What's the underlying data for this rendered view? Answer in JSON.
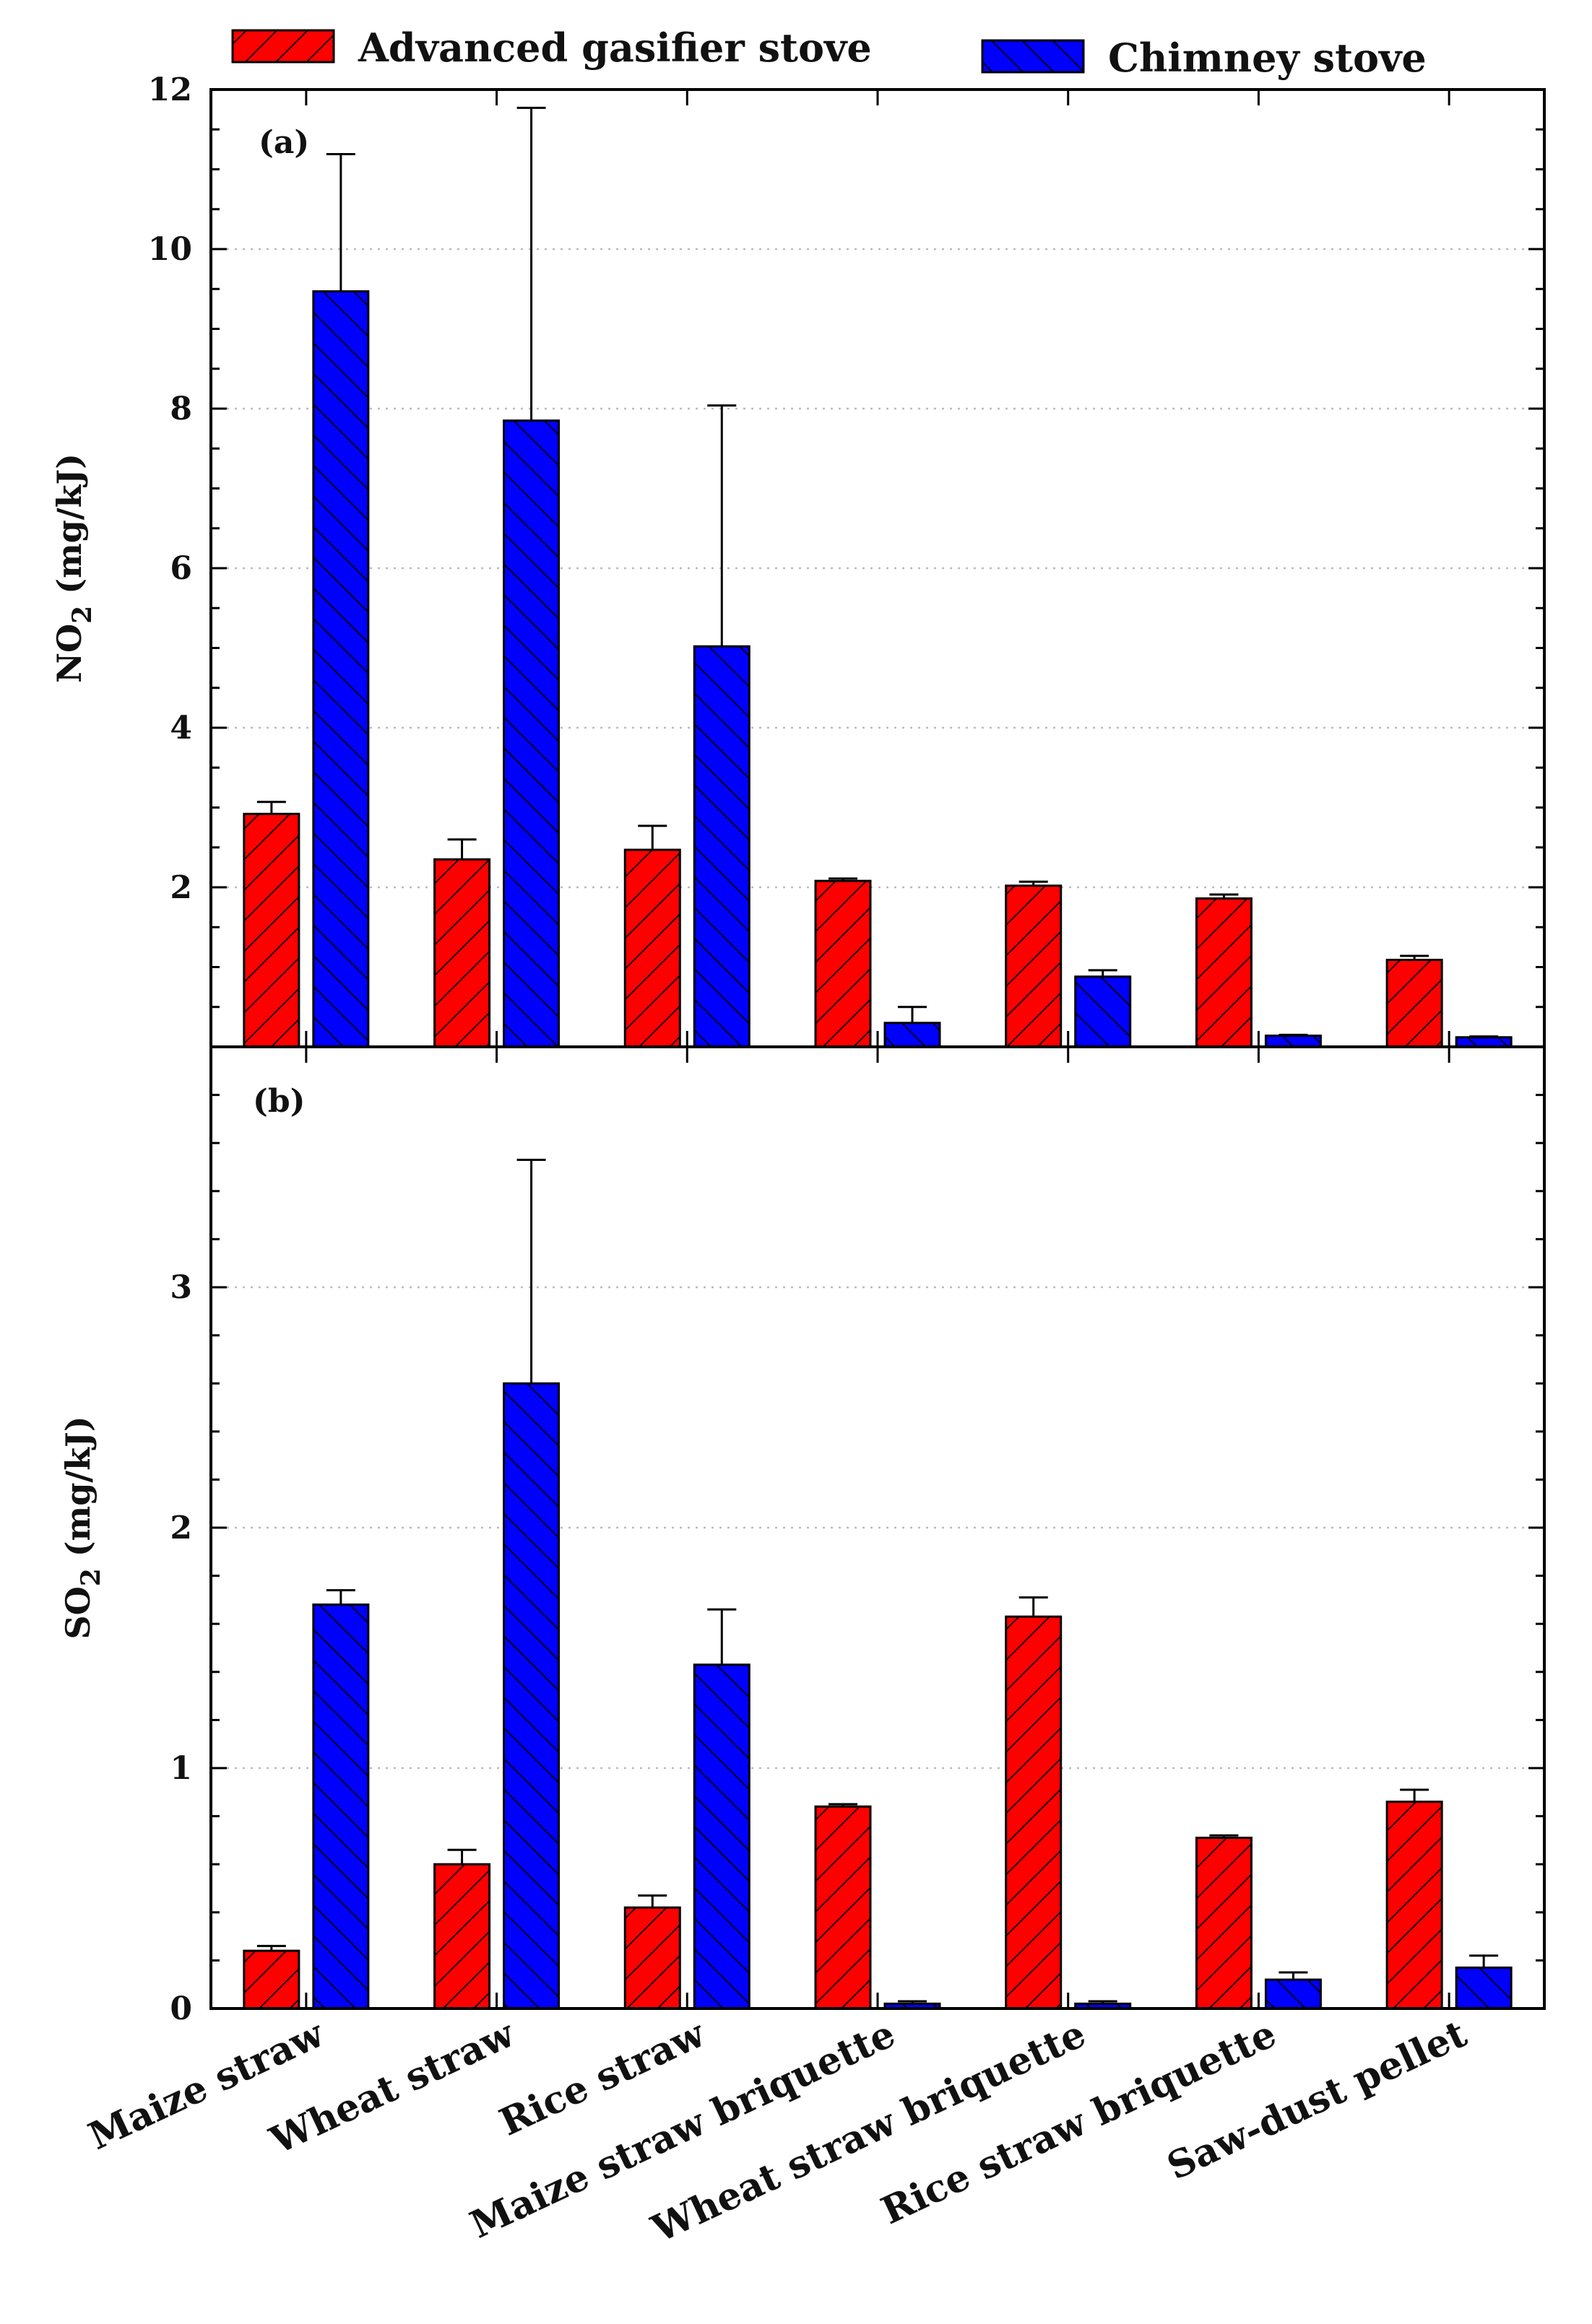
{
  "chart_data": [
    {
      "panel": "(a)",
      "type": "bar",
      "ylabel": "NO",
      "ylabel_sub": "2",
      "ylabel_unit": " (mg/kJ)",
      "ylim": [
        0,
        12
      ],
      "yticks": [
        2,
        4,
        6,
        8,
        10,
        12
      ],
      "grid": true,
      "categories": [
        "Maize straw",
        "Wheat straw",
        "Rice straw",
        "Maize straw briquette",
        "Wheat straw briquette",
        "Rice straw briquette",
        "Saw-dust pellet"
      ],
      "series": [
        {
          "name": "Advanced gasifier stove",
          "color": "#ff0000",
          "values": [
            2.92,
            2.35,
            2.47,
            2.08,
            2.02,
            1.86,
            1.09
          ],
          "errors": [
            0.15,
            0.25,
            0.3,
            0.03,
            0.05,
            0.05,
            0.05
          ]
        },
        {
          "name": "Chimney stove",
          "color": "#0000ff",
          "values": [
            9.47,
            7.85,
            5.02,
            0.3,
            0.88,
            0.14,
            0.12
          ],
          "errors": [
            1.72,
            3.92,
            3.02,
            0.2,
            0.08,
            0.01,
            0.01
          ]
        }
      ]
    },
    {
      "panel": "(b)",
      "type": "bar",
      "ylabel": "SO",
      "ylabel_sub": "2",
      "ylabel_unit": " (mg/kJ)",
      "ylim": [
        0,
        4
      ],
      "yticks": [
        0,
        1,
        2,
        3
      ],
      "grid": true,
      "categories": [
        "Maize straw",
        "Wheat straw",
        "Rice straw",
        "Maize straw briquette",
        "Wheat straw briquette",
        "Rice straw briquette",
        "Saw-dust pellet"
      ],
      "series": [
        {
          "name": "Advanced gasifier stove",
          "color": "#ff0000",
          "values": [
            0.24,
            0.6,
            0.42,
            0.84,
            1.63,
            0.71,
            0.86
          ],
          "errors": [
            0.02,
            0.06,
            0.05,
            0.01,
            0.08,
            0.01,
            0.05
          ]
        },
        {
          "name": "Chimney stove",
          "color": "#0000ff",
          "values": [
            1.68,
            2.6,
            1.43,
            0.02,
            0.02,
            0.12,
            0.17
          ],
          "errors": [
            0.06,
            0.93,
            0.23,
            0.01,
            0.01,
            0.03,
            0.05
          ]
        }
      ]
    }
  ],
  "legend": [
    {
      "label": "Advanced gasifier stove",
      "color": "#ff0000"
    },
    {
      "label": "Chimney stove",
      "color": "#0000ff"
    }
  ]
}
